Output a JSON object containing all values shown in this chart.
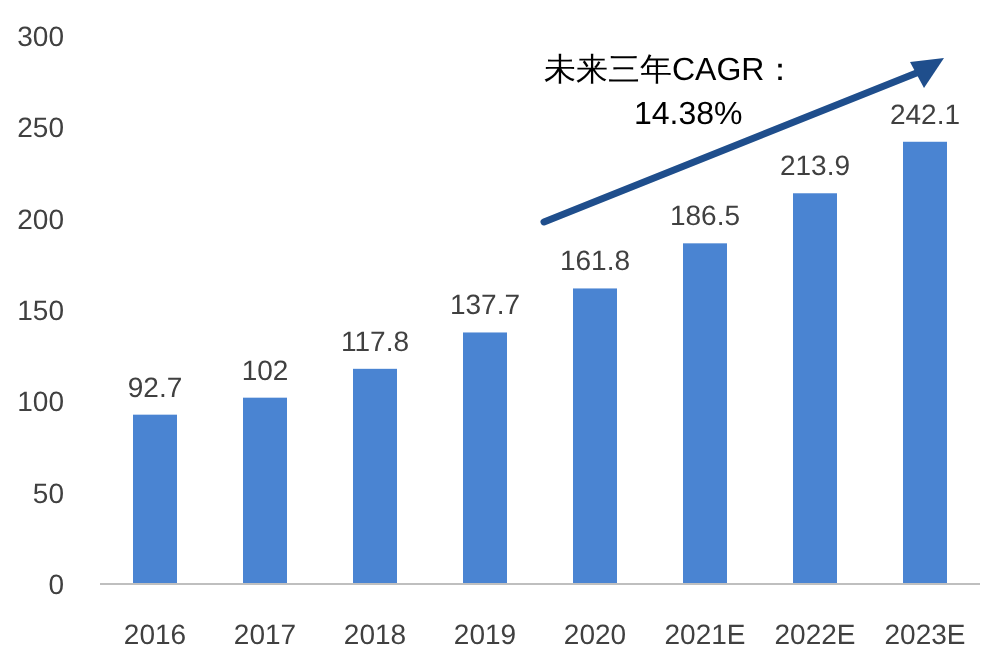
{
  "chart_data": {
    "type": "bar",
    "categories": [
      "2016",
      "2017",
      "2018",
      "2019",
      "2020",
      "2021E",
      "2022E",
      "2023E"
    ],
    "values": [
      92.7,
      102,
      117.8,
      137.7,
      161.8,
      186.5,
      213.9,
      242.1
    ],
    "color": "#4a84d2",
    "ylim": [
      0,
      300
    ],
    "yticks": [
      0,
      50,
      100,
      150,
      200,
      250,
      300
    ],
    "data_labels": true,
    "grid": false,
    "annotations": [
      "未来三年CAGR：",
      "14.38%"
    ]
  }
}
